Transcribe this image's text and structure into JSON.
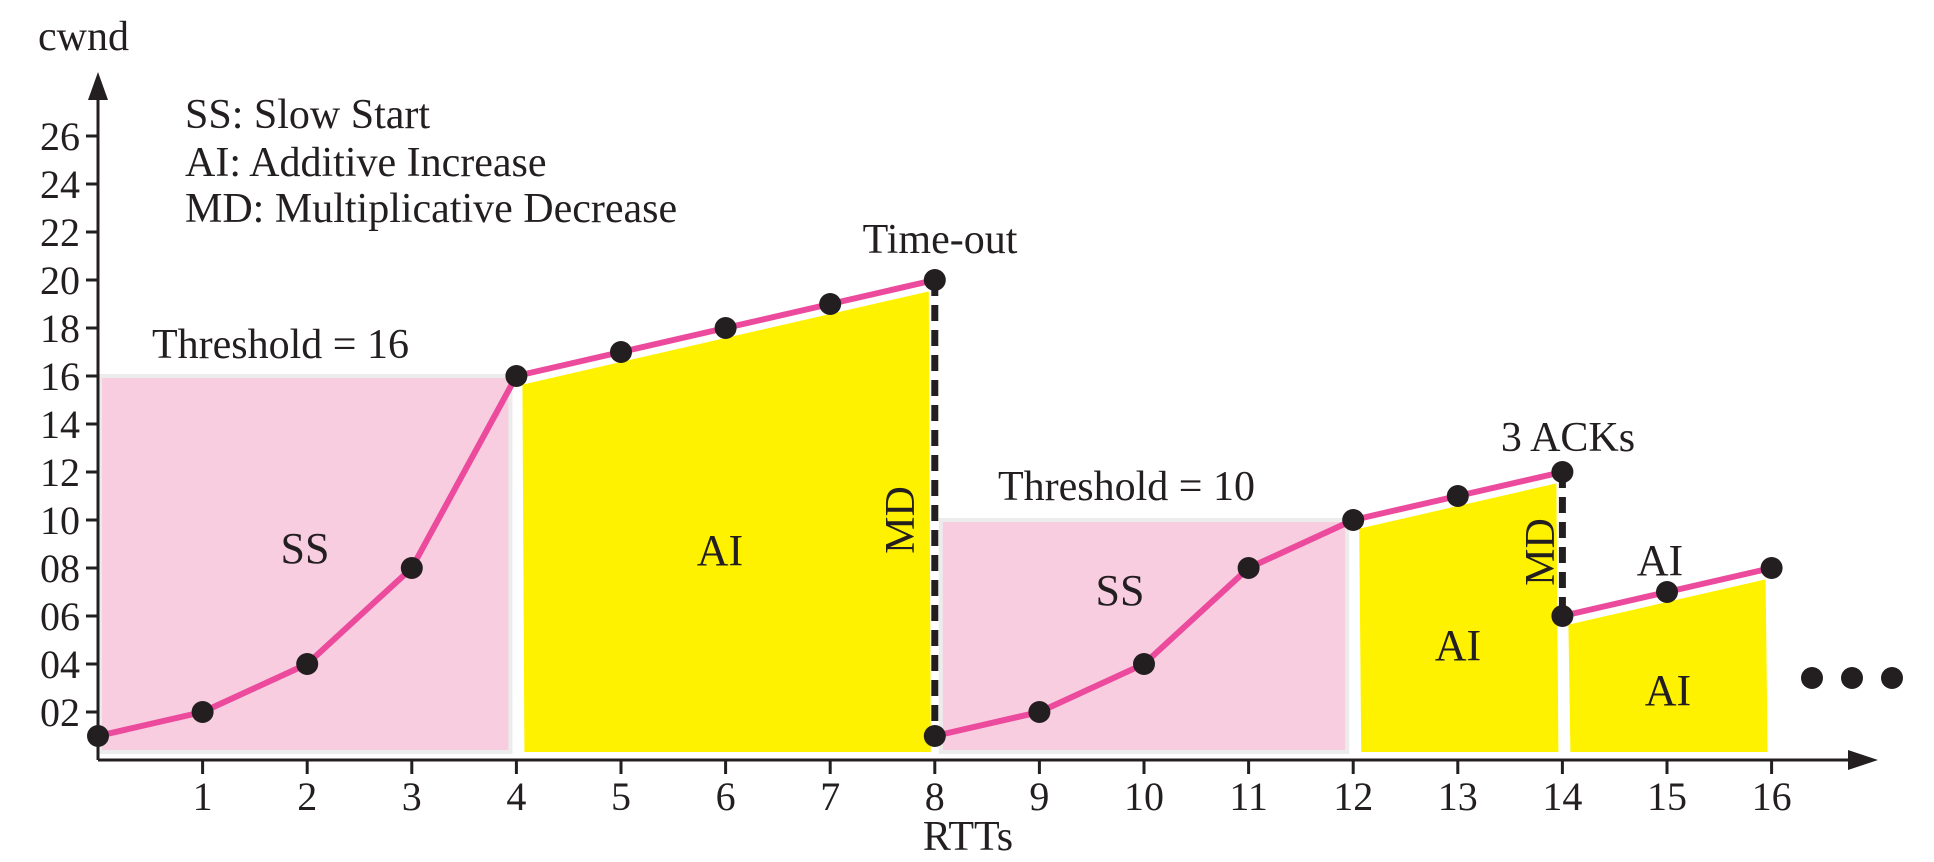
{
  "chart_data": {
    "type": "line",
    "title": "",
    "xlabel": "RTTs",
    "ylabel": "cwnd",
    "x_ticks": [
      "1",
      "2",
      "3",
      "4",
      "5",
      "6",
      "7",
      "8",
      "9",
      "10",
      "11",
      "12",
      "13",
      "14",
      "15",
      "16"
    ],
    "y_ticks": [
      "02",
      "04",
      "06",
      "08",
      "10",
      "12",
      "14",
      "16",
      "18",
      "20",
      "22",
      "24",
      "26"
    ],
    "xlim": [
      0,
      17.5
    ],
    "ylim": [
      0,
      27.5
    ],
    "grid": false,
    "legend_lines": [
      "SS: Slow Start",
      "AI: Additive Increase",
      "MD: Multiplicative Decrease"
    ],
    "series": [
      {
        "x": [
          0,
          1,
          2,
          3,
          4,
          5,
          6,
          7,
          8,
          8,
          9,
          10,
          11,
          12,
          13,
          14,
          14,
          15,
          16
        ],
        "y": [
          1,
          2,
          4,
          8,
          16,
          17,
          18,
          19,
          20,
          1,
          2,
          4,
          8,
          10,
          11,
          12,
          6,
          7,
          8
        ]
      }
    ],
    "regions": [
      {
        "type": "SS",
        "label": "SS",
        "x_start": 0,
        "x_end": 4,
        "top": 16,
        "color": "#f8cde0"
      },
      {
        "type": "AI",
        "label": "AI",
        "x_start": 4,
        "x_end": 8,
        "color": "#fff200"
      },
      {
        "type": "SS",
        "label": "SS",
        "x_start": 8,
        "x_end": 12,
        "top": 10,
        "color": "#f8cde0"
      },
      {
        "type": "AI",
        "label": "AI",
        "x_start": 12,
        "x_end": 14,
        "color": "#fff200"
      },
      {
        "type": "AI",
        "label": "AI",
        "x_start": 14,
        "x_end": 16,
        "color": "#fff200"
      }
    ],
    "drops": [
      {
        "x": 8,
        "from": 20,
        "to": 1,
        "label": "MD",
        "event": "Time-out"
      },
      {
        "x": 14,
        "from": 12,
        "to": 6,
        "label": "MD",
        "event": "3 ACKs"
      }
    ],
    "thresholds": [
      {
        "label": "Threshold = 16",
        "value": 16
      },
      {
        "label": "Threshold = 10",
        "value": 10
      }
    ],
    "extra_labels": [
      "AI"
    ],
    "continuation": "• • •",
    "colors": {
      "line": "#ec4a9c",
      "point": "#231f20",
      "ss_fill": "#f8cde0",
      "ai_fill": "#fff200",
      "axis": "#231f20"
    }
  }
}
